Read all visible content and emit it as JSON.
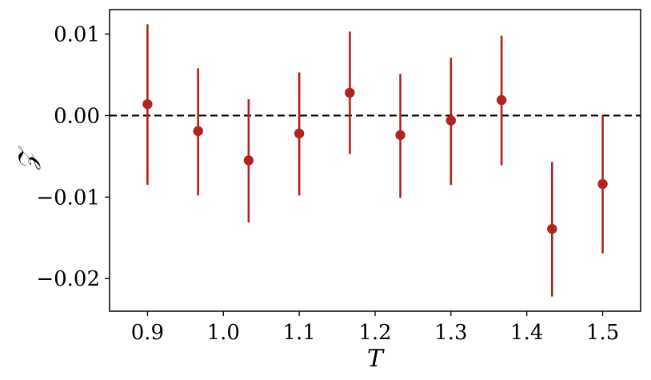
{
  "chart_data": {
    "type": "scatter",
    "xlabel": "T",
    "ylabel": "𝒵",
    "xlim": [
      0.85,
      1.55
    ],
    "ylim": [
      -0.024,
      0.013
    ],
    "x_ticks": [
      0.9,
      1.0,
      1.1,
      1.2,
      1.3,
      1.4,
      1.5
    ],
    "x_tick_labels": [
      "0.9",
      "1.0",
      "1.1",
      "1.2",
      "1.3",
      "1.4",
      "1.5"
    ],
    "y_ticks": [
      0.01,
      0.0,
      -0.01,
      -0.02
    ],
    "y_tick_labels": [
      "0.01",
      "0.00",
      "−0.01",
      "−0.02"
    ],
    "reference_line": {
      "y": 0.0,
      "style": "dashed",
      "color": "#000000"
    },
    "series": [
      {
        "color": "#b22222",
        "points": [
          {
            "x": 0.9,
            "y": 0.0014,
            "err_low": -0.0085,
            "err_high": 0.0112
          },
          {
            "x": 0.9667,
            "y": -0.0019,
            "err_low": -0.0098,
            "err_high": 0.0058
          },
          {
            "x": 1.0333,
            "y": -0.0055,
            "err_low": -0.0131,
            "err_high": 0.002
          },
          {
            "x": 1.1,
            "y": -0.0022,
            "err_low": -0.0098,
            "err_high": 0.0053
          },
          {
            "x": 1.1667,
            "y": 0.0028,
            "err_low": -0.0047,
            "err_high": 0.0103
          },
          {
            "x": 1.2333,
            "y": -0.0024,
            "err_low": -0.0101,
            "err_high": 0.0051
          },
          {
            "x": 1.3,
            "y": -0.0006,
            "err_low": -0.0085,
            "err_high": 0.0071
          },
          {
            "x": 1.3667,
            "y": 0.0019,
            "err_low": -0.0061,
            "err_high": 0.0098
          },
          {
            "x": 1.4333,
            "y": -0.0139,
            "err_low": -0.0222,
            "err_high": -0.0057
          },
          {
            "x": 1.5,
            "y": -0.0084,
            "err_low": -0.0169,
            "err_high": 0.0
          }
        ]
      }
    ],
    "grid": false,
    "legend": "none"
  }
}
